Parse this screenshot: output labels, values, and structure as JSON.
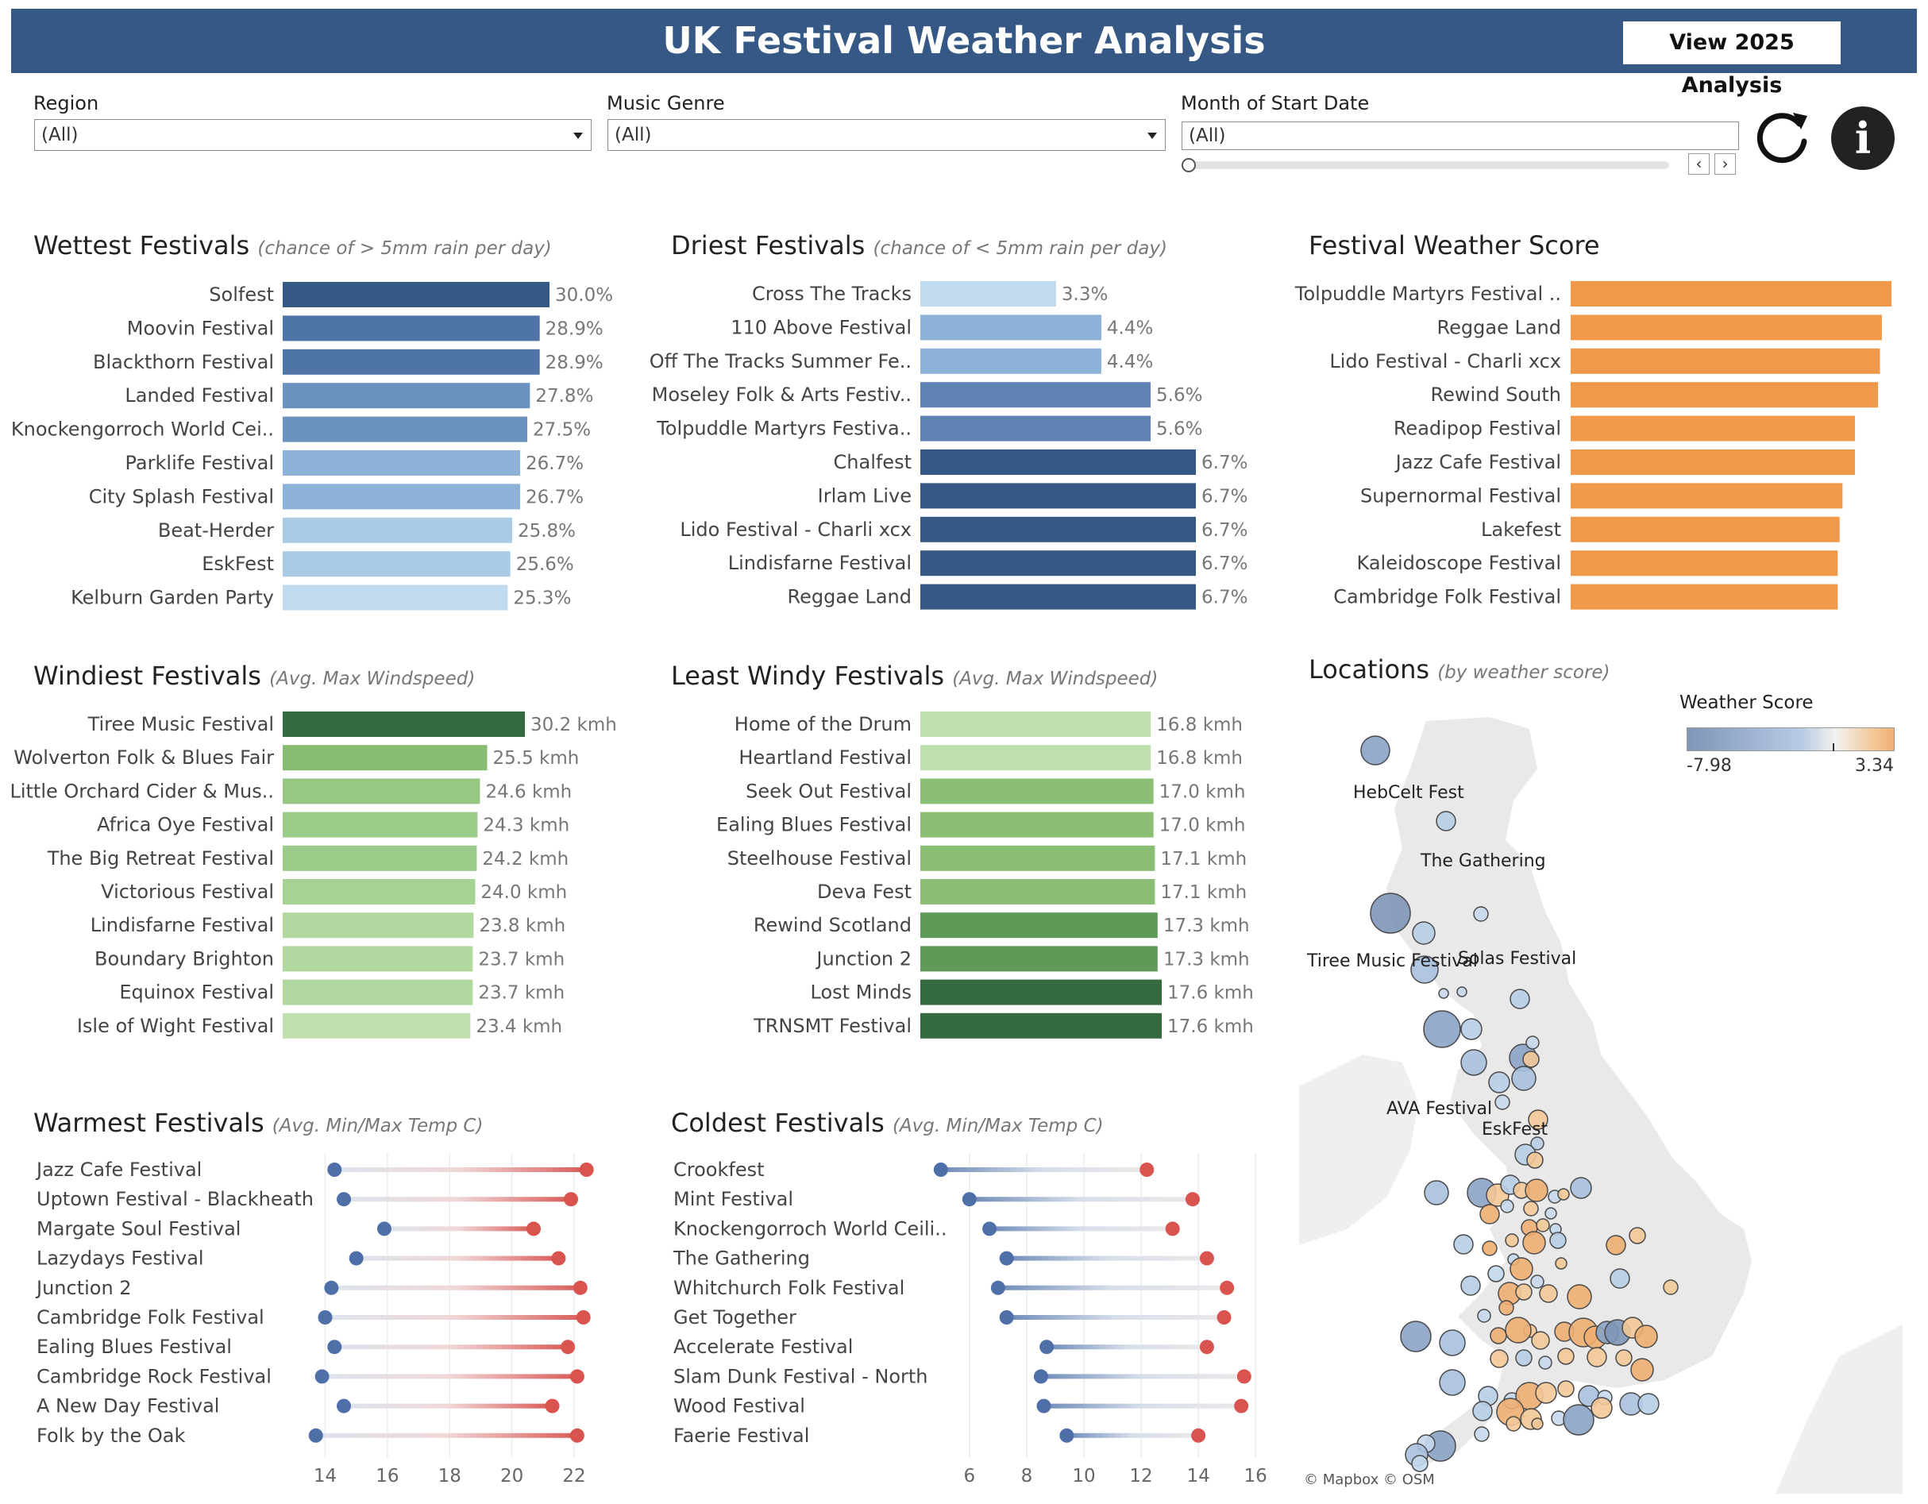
{
  "header": {
    "title": "UK Festival Weather Analysis",
    "view_button": "View 2025 Analysis"
  },
  "filters": {
    "region": {
      "label": "Region",
      "value": "(All)"
    },
    "genre": {
      "label": "Music Genre",
      "value": "(All)"
    },
    "month": {
      "label": "Month of Start Date",
      "value": "(All)"
    }
  },
  "icons": {
    "refresh": "refresh-icon",
    "info": "info-icon",
    "prev": "chevron-left-icon",
    "next": "chevron-right-icon",
    "info_glyph": "i"
  },
  "sections": {
    "wettest": {
      "title": "Wettest Festivals",
      "subtitle": "(chance of > 5mm rain per day)"
    },
    "driest": {
      "title": "Driest Festivals",
      "subtitle": "(chance of < 5mm rain per day)"
    },
    "score": {
      "title": "Festival Weather Score",
      "subtitle": ""
    },
    "windiest": {
      "title": "Windiest Festivals",
      "subtitle": "(Avg. Max Windspeed)"
    },
    "least_windy": {
      "title": "Least Windy Festivals",
      "subtitle": "(Avg. Max Windspeed)"
    },
    "locations": {
      "title": "Locations",
      "subtitle": "(by weather score)"
    },
    "warmest": {
      "title": "Warmest Festivals",
      "subtitle": "(Avg. Min/Max Temp C)"
    },
    "coldest": {
      "title": "Coldest Festivals",
      "subtitle": "(Avg. Min/Max Temp C)"
    }
  },
  "map": {
    "credit": "© Mapbox  © OSM",
    "legend_title": "Weather Score",
    "legend_min": "-7.98",
    "legend_max": "3.34",
    "labels": [
      "HebCelt Fest",
      "The Gathering",
      "Tiree Music Festival",
      "Solas Festival",
      "AVA Festival",
      "EskFest"
    ]
  },
  "colors": {
    "header": "#355885",
    "orange": "#f0994a",
    "temp_min": "#4e6fa8",
    "temp_max": "#d9534f"
  },
  "chart_data": [
    {
      "id": "wettest",
      "type": "bar",
      "unit": "%",
      "categories": [
        "Solfest",
        "Moovin Festival",
        "Blackthorn Festival",
        "Landed Festival",
        "Knockengorroch World Cei..",
        "Parklife Festival",
        "City Splash Festival",
        "Beat-Herder",
        "EskFest",
        "Kelburn Garden Party"
      ],
      "values": [
        30.0,
        28.9,
        28.9,
        27.8,
        27.5,
        26.7,
        26.7,
        25.8,
        25.6,
        25.3
      ],
      "labels": [
        "30.0%",
        "28.9%",
        "28.9%",
        "27.8%",
        "27.5%",
        "26.7%",
        "26.7%",
        "25.8%",
        "25.6%",
        "25.3%"
      ],
      "colors": [
        "#355885",
        "#4f75a6",
        "#4f75a6",
        "#6b91be",
        "#6b91be",
        "#8db2d8",
        "#8db2d8",
        "#aacbe6",
        "#aacbe6",
        "#c0daef"
      ]
    },
    {
      "id": "driest",
      "type": "bar",
      "unit": "%",
      "categories": [
        "Cross The Tracks",
        "110 Above Festival",
        "Off The Tracks Summer Fe..",
        "Moseley Folk & Arts Festiv..",
        "Tolpuddle Martyrs Festiva..",
        "Chalfest",
        "Irlam Live",
        "Lido Festival - Charli xcx",
        "Lindisfarne Festival",
        "Reggae Land"
      ],
      "values": [
        3.3,
        4.4,
        4.4,
        5.6,
        5.6,
        6.7,
        6.7,
        6.7,
        6.7,
        6.7
      ],
      "labels": [
        "3.3%",
        "4.4%",
        "4.4%",
        "5.6%",
        "5.6%",
        "6.7%",
        "6.7%",
        "6.7%",
        "6.7%",
        "6.7%"
      ],
      "colors": [
        "#c0daef",
        "#8db2d8",
        "#8db2d8",
        "#5e82b2",
        "#5e82b2",
        "#355885",
        "#355885",
        "#355885",
        "#355885",
        "#355885"
      ]
    },
    {
      "id": "score",
      "type": "bar",
      "categories": [
        "Tolpuddle Martyrs Festival ..",
        "Reggae Land",
        "Lido Festival - Charli xcx",
        "Rewind South",
        "Readipop Festival",
        "Jazz Cafe Festival",
        "Supernormal Festival",
        "Lakefest",
        "Kaleidoscope Festival",
        "Cambridge Folk Festival"
      ],
      "values": [
        3.34,
        3.24,
        3.22,
        3.2,
        2.96,
        2.96,
        2.83,
        2.8,
        2.78,
        2.78
      ],
      "colors": [
        "#f0994a",
        "#f0994a",
        "#f0994a",
        "#f0994a",
        "#f0994a",
        "#f0994a",
        "#f0994a",
        "#f0994a",
        "#f0994a",
        "#f0994a"
      ]
    },
    {
      "id": "windiest",
      "type": "bar",
      "unit": "kmh",
      "categories": [
        "Tiree Music Festival",
        "Wolverton Folk & Blues Fair",
        "Little Orchard Cider & Mus..",
        "Africa Oye Festival",
        "The Big Retreat Festival",
        "Victorious Festival",
        "Lindisfarne Festival",
        "Boundary Brighton",
        "Equinox Festival",
        "Isle of Wight Festival"
      ],
      "values": [
        30.2,
        25.5,
        24.6,
        24.3,
        24.2,
        24.0,
        23.8,
        23.7,
        23.7,
        23.4
      ],
      "labels": [
        "30.2 kmh",
        "25.5 kmh",
        "24.6 kmh",
        "24.3 kmh",
        "24.2 kmh",
        "24.0 kmh",
        "23.8 kmh",
        "23.7 kmh",
        "23.7 kmh",
        "23.4 kmh"
      ],
      "colors": [
        "#356a3f",
        "#86bd72",
        "#96c884",
        "#9ccc8a",
        "#9ccc8a",
        "#a6d294",
        "#b0d89f",
        "#b0d89f",
        "#b0d89f",
        "#bfe0ad"
      ]
    },
    {
      "id": "least_windy",
      "type": "bar",
      "unit": "kmh",
      "categories": [
        "Home of the Drum",
        "Heartland Festival",
        "Seek Out Festival",
        "Ealing Blues Festival",
        "Steelhouse Festival",
        "Deva Fest",
        "Rewind Scotland",
        "Junction 2",
        "Lost Minds",
        "TRNSMT Festival"
      ],
      "values": [
        16.8,
        16.8,
        17.0,
        17.0,
        17.1,
        17.1,
        17.3,
        17.3,
        17.6,
        17.6
      ],
      "labels": [
        "16.8 kmh",
        "16.8 kmh",
        "17.0 kmh",
        "17.0 kmh",
        "17.1 kmh",
        "17.1 kmh",
        "17.3 kmh",
        "17.3 kmh",
        "17.6 kmh",
        "17.6 kmh"
      ],
      "colors": [
        "#bfe0ad",
        "#bfe0ad",
        "#8bbf75",
        "#8bbf75",
        "#8bbf75",
        "#8bbf75",
        "#5f9a58",
        "#5f9a58",
        "#356a3f",
        "#356a3f"
      ]
    },
    {
      "id": "warmest",
      "type": "dumbbell",
      "xlim": [
        13.4,
        23.2
      ],
      "xticks": [
        14,
        16,
        18,
        20,
        22
      ],
      "categories": [
        "Jazz Cafe Festival",
        "Uptown Festival - Blackheath",
        "Margate Soul Festival",
        "Lazydays Festival",
        "Junction 2",
        "Cambridge Folk Festival",
        "Ealing Blues Festival",
        "Cambridge Rock Festival",
        "A New Day Festival",
        "Folk by the Oak"
      ],
      "min": [
        14.3,
        14.6,
        15.9,
        15.0,
        14.2,
        14.0,
        14.3,
        13.9,
        14.6,
        13.7
      ],
      "max": [
        22.4,
        21.9,
        20.7,
        21.5,
        22.2,
        22.3,
        21.8,
        22.1,
        21.3,
        22.1
      ]
    },
    {
      "id": "coldest",
      "type": "dumbbell",
      "xlim": [
        5.2,
        16.3
      ],
      "xticks": [
        6,
        8,
        10,
        12,
        14,
        16
      ],
      "categories": [
        "Crookfest",
        "Mint Festival",
        "Knockengorroch World Ceili..",
        "The Gathering",
        "Whitchurch Folk Festival",
        "Get Together",
        "Accelerate Festival",
        "Slam Dunk Festival - North",
        "Wood Festival",
        "Faerie Festival"
      ],
      "min": [
        5.0,
        6.0,
        6.7,
        7.3,
        7.0,
        7.3,
        8.7,
        8.5,
        8.6,
        9.4
      ],
      "max": [
        12.2,
        13.8,
        13.1,
        14.3,
        15.0,
        14.9,
        14.3,
        15.6,
        15.5,
        14.0
      ]
    }
  ]
}
